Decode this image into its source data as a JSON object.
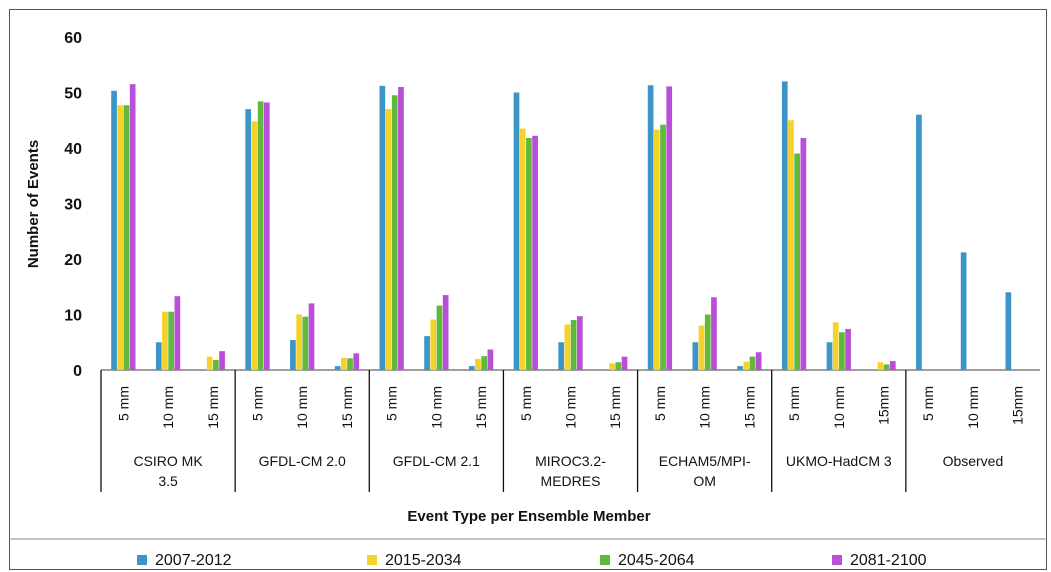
{
  "chart_data": {
    "type": "bar",
    "title": "",
    "xlabel": "Event Type per Ensemble Member",
    "ylabel": "Number of Events",
    "ylim": [
      0,
      60
    ],
    "yticks": [
      0,
      10,
      20,
      30,
      40,
      50,
      60
    ],
    "grid": false,
    "legend_position": "bottom",
    "groups": [
      {
        "label": "CSIRO MK\n3.5",
        "categories": [
          "5 mm",
          "10 mm",
          "15 mm"
        ]
      },
      {
        "label": "GFDL-CM 2.0",
        "categories": [
          "5 mm",
          "10 mm",
          "15 mm"
        ]
      },
      {
        "label": "GFDL-CM 2.1",
        "categories": [
          "5 mm",
          "10 mm",
          "15 mm"
        ]
      },
      {
        "label": "MIROC3.2-\nMEDRES",
        "categories": [
          "5 mm",
          "10 mm",
          "15 mm"
        ]
      },
      {
        "label": "ECHAM5/MPI-\nOM",
        "categories": [
          "5 mm",
          "10 mm",
          "15 mm"
        ]
      },
      {
        "label": "UKMO-HadCM 3",
        "categories": [
          "5 mm",
          "10 mm",
          "15mm"
        ]
      },
      {
        "label": "Observed",
        "categories": [
          "5 mm",
          "10 mm",
          "15mm"
        ]
      }
    ],
    "series": [
      {
        "name": "2007-2012",
        "color": "#3b96c7",
        "values": [
          50.3,
          5,
          0,
          47,
          5.4,
          0.7,
          51.2,
          6.1,
          0.7,
          50,
          5,
          0,
          51.3,
          5,
          0.7,
          52,
          5,
          0,
          46,
          21.2,
          14
        ]
      },
      {
        "name": "2015-2034",
        "color": "#f5d22a",
        "values": [
          47.7,
          10.5,
          2.4,
          44.8,
          10,
          2.2,
          47,
          9.1,
          2,
          43.5,
          8.2,
          1.2,
          43.3,
          8,
          1.5,
          45,
          8.6,
          1.4,
          null,
          null,
          null
        ]
      },
      {
        "name": "2045-2064",
        "color": "#5fba3b",
        "values": [
          47.7,
          10.5,
          1.8,
          48.4,
          9.6,
          2.1,
          49.5,
          11.6,
          2.5,
          41.8,
          9,
          1.4,
          44.2,
          10,
          2.4,
          39,
          6.8,
          1,
          null,
          null,
          null
        ]
      },
      {
        "name": "2081-2100",
        "color": "#b94fd6",
        "values": [
          51.5,
          13.3,
          3.4,
          48.2,
          12,
          3,
          51,
          13.5,
          3.7,
          42.2,
          9.7,
          2.4,
          51.1,
          13.1,
          3.2,
          41.8,
          7.4,
          1.6,
          null,
          null,
          null
        ]
      }
    ]
  }
}
